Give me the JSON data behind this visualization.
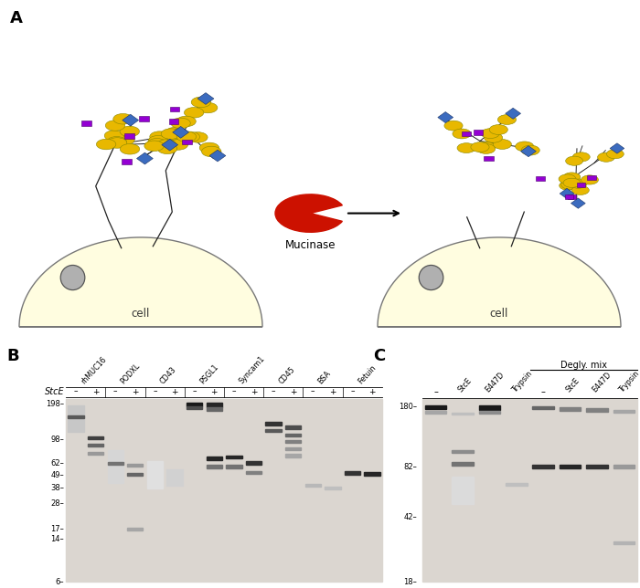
{
  "panel_A": {
    "title": "A",
    "mucinase_label": "Mucinase",
    "cell_label": "cell",
    "arrow_direction": "right"
  },
  "panel_B": {
    "title": "B",
    "stce_label": "StcE",
    "samples": [
      "rhMUC16",
      "PODXL",
      "CD43",
      "PSGL1",
      "Syncam1",
      "CD45",
      "BSA",
      "Fetuin"
    ],
    "mw_markers": [
      198,
      98,
      62,
      49,
      38,
      28,
      17,
      14,
      6
    ],
    "gel_bg": "#e2ddd8"
  },
  "panel_C": {
    "title": "C",
    "degly_label": "Degly. mix",
    "lanes": [
      "-",
      "StcE",
      "E447D",
      "Trypsin",
      "-",
      "StcE",
      "E447D",
      "Trypsin"
    ],
    "mw_markers": [
      180,
      82,
      42,
      18
    ],
    "gel_bg": "#e2ddd8"
  },
  "colors": {
    "yellow_circle": "#E8B800",
    "blue_diamond": "#3B6BBF",
    "purple_square": "#9400D3",
    "cell_fill": "#FFFDE0",
    "cell_outline": "#777777",
    "receptor_fill": "#B0B0B0",
    "receptor_outline": "#555555",
    "enzyme_red": "#CC1100",
    "gel_bg": "#e0dbd5",
    "line_color": "#222222"
  }
}
